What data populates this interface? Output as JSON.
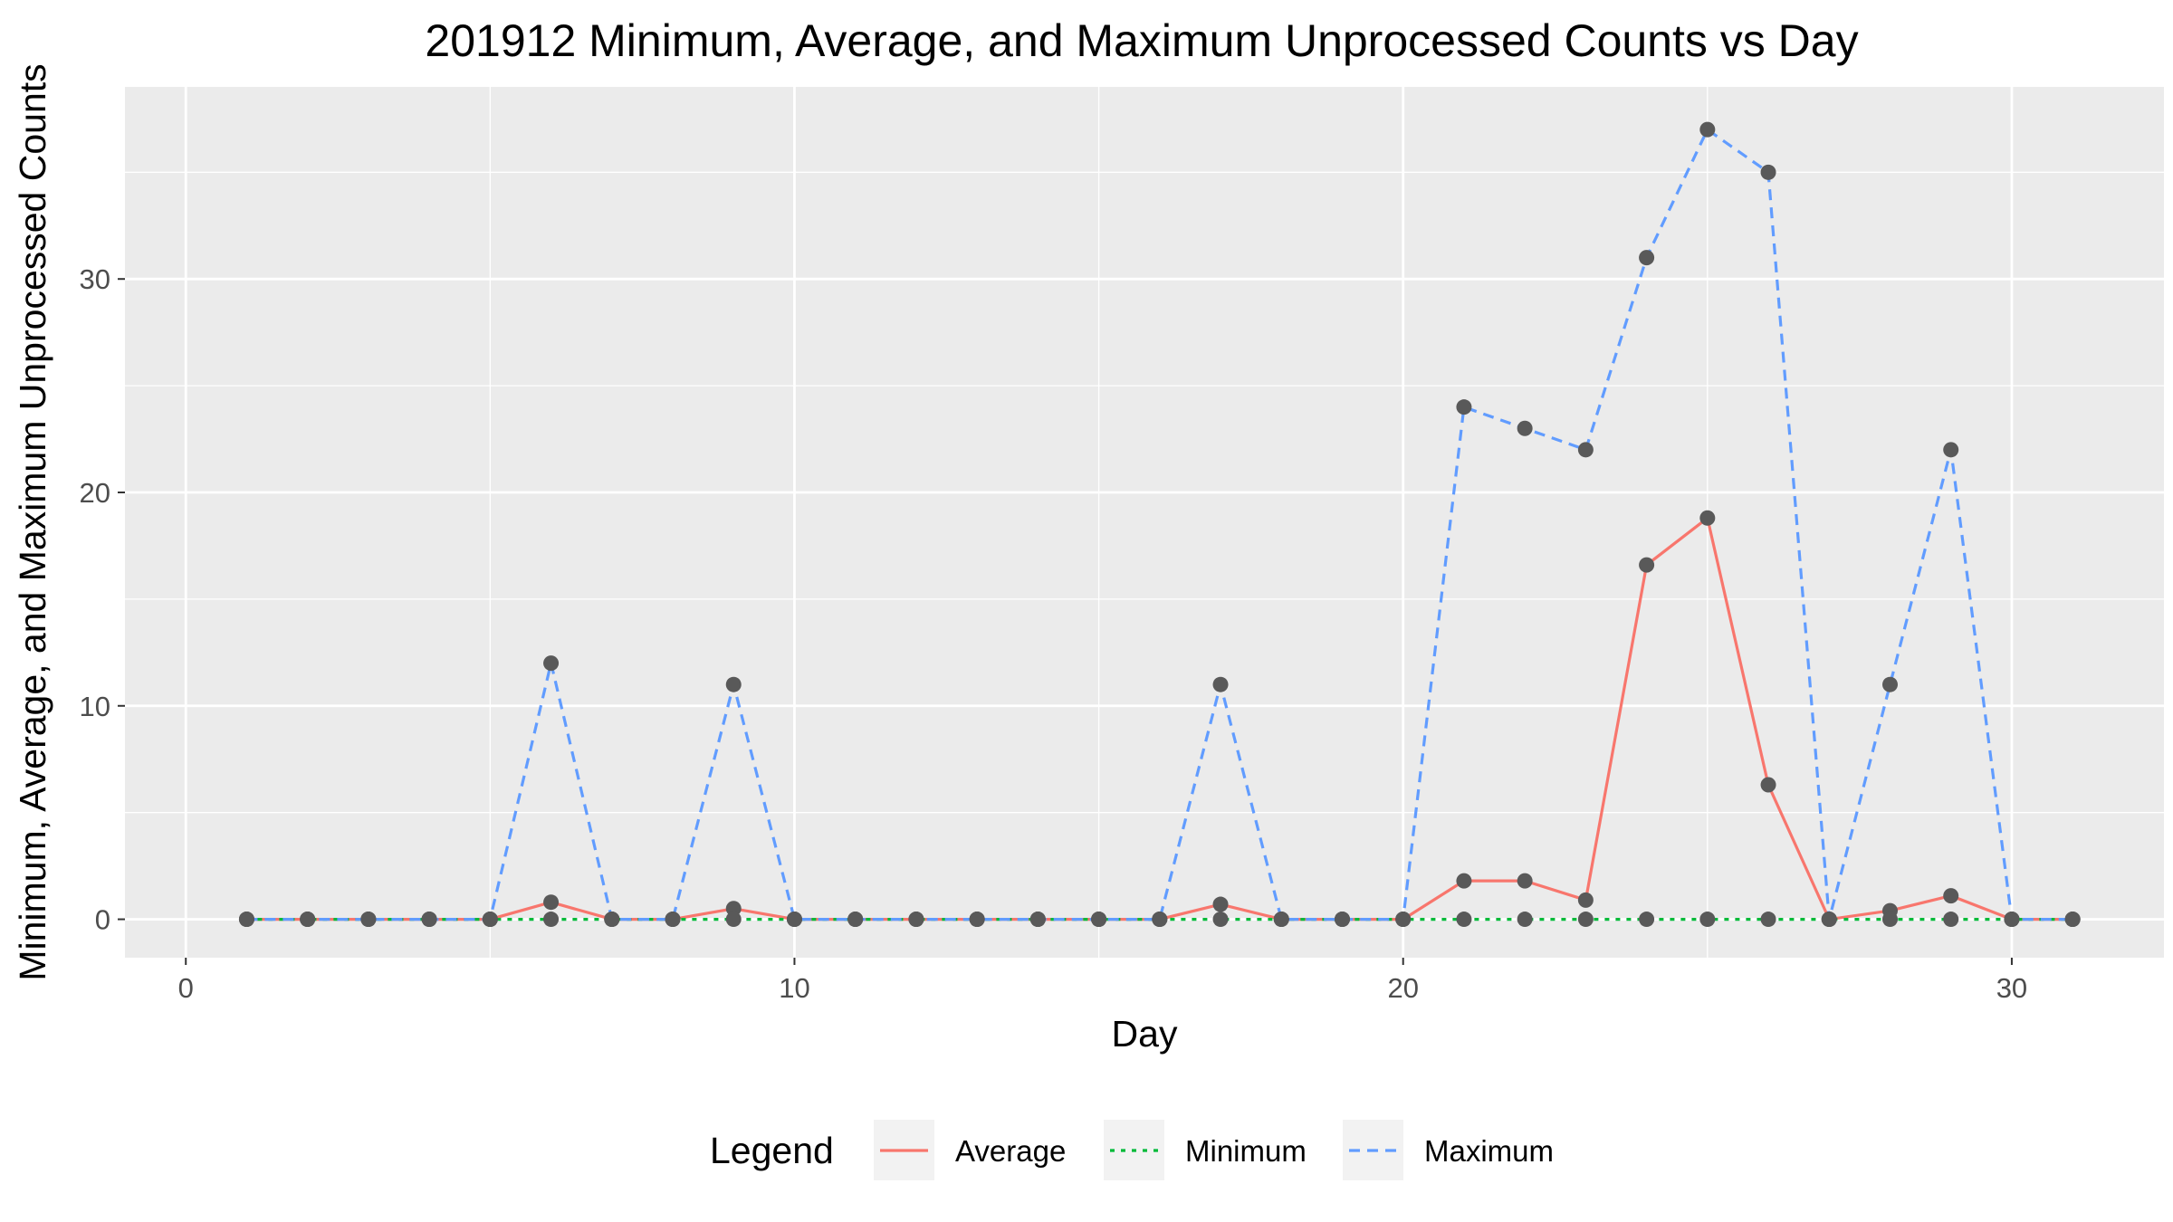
{
  "chart_data": {
    "type": "line",
    "title": "201912 Minimum, Average, and Maximum Unprocessed Counts vs Day",
    "xlabel": "Day",
    "ylabel": "Minimum, Average, and Maximum Unprocessed Counts",
    "xlim": [
      -1,
      32.5
    ],
    "ylim": [
      -1.8,
      39
    ],
    "x_ticks": [
      0,
      10,
      20,
      30
    ],
    "y_ticks": [
      0,
      10,
      20,
      30
    ],
    "grid": true,
    "legend_position": "bottom",
    "legend_title": "Legend",
    "x": [
      1,
      2,
      3,
      4,
      5,
      6,
      7,
      8,
      9,
      10,
      11,
      12,
      13,
      14,
      15,
      16,
      17,
      18,
      19,
      20,
      21,
      22,
      23,
      24,
      25,
      26,
      27,
      28,
      29,
      30,
      31
    ],
    "series": [
      {
        "name": "Average",
        "color": "#F8766D",
        "dash": "solid",
        "values": [
          0,
          0,
          0,
          0,
          0,
          0.8,
          0,
          0,
          0.5,
          0,
          0,
          0,
          0,
          0,
          0,
          0,
          0.7,
          0,
          0,
          0,
          1.8,
          1.8,
          0.9,
          16.6,
          18.8,
          6.3,
          0,
          0.4,
          1.1,
          0,
          0
        ]
      },
      {
        "name": "Minimum",
        "color": "#00BA38",
        "dash": "dotted",
        "values": [
          0,
          0,
          0,
          0,
          0,
          0,
          0,
          0,
          0,
          0,
          0,
          0,
          0,
          0,
          0,
          0,
          0,
          0,
          0,
          0,
          0,
          0,
          0,
          0,
          0,
          0,
          0,
          0,
          0,
          0,
          0
        ]
      },
      {
        "name": "Maximum",
        "color": "#619CFF",
        "dash": "dashed",
        "values": [
          0,
          0,
          0,
          0,
          0,
          12,
          0,
          0,
          11,
          0,
          0,
          0,
          0,
          0,
          0,
          0,
          11,
          0,
          0,
          0,
          24,
          23,
          22,
          31,
          37,
          35,
          0,
          11,
          22,
          0,
          0
        ]
      }
    ],
    "point_color": "#595959"
  }
}
